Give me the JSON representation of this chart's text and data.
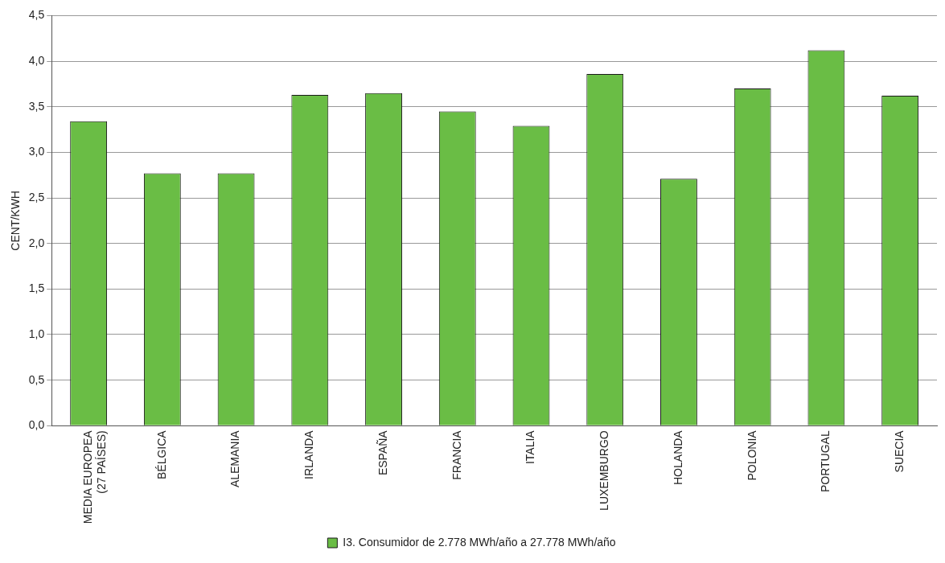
{
  "chart_data": {
    "type": "bar",
    "ylabel": "CENT/KWH",
    "categories": [
      "MEDIA EUROPEA\n(27 PAÍSES)",
      "BÉLGICA",
      "ALEMANIA",
      "IRLANDA",
      "ESPAÑA",
      "FRANCIA",
      "ITALIA",
      "LUXEMBURGO",
      "HOLANDA",
      "POLONIA",
      "PORTUGAL",
      "SUECIA"
    ],
    "series": [
      {
        "name": "I3. Consumidor de 2.778 MWh/año a 27.778 MWh/año",
        "color": "#6abd45",
        "values": [
          3.34,
          2.77,
          2.77,
          3.63,
          3.65,
          3.45,
          3.29,
          3.86,
          2.71,
          3.7,
          4.12,
          3.62
        ]
      }
    ],
    "ylim": [
      0,
      4.5
    ],
    "yticks": [
      {
        "value": 0,
        "label": "0,0"
      },
      {
        "value": 0.5,
        "label": "0,5"
      },
      {
        "value": 1,
        "label": "1,0"
      },
      {
        "value": 1.5,
        "label": "1,5"
      },
      {
        "value": 2,
        "label": "2,0"
      },
      {
        "value": 2.5,
        "label": "2,5"
      },
      {
        "value": 3,
        "label": "3,0"
      },
      {
        "value": 3.5,
        "label": "3,5"
      },
      {
        "value": 4,
        "label": "4,0"
      },
      {
        "value": 4.5,
        "label": "4,5"
      }
    ],
    "grid": "y",
    "legend": "bottom"
  }
}
